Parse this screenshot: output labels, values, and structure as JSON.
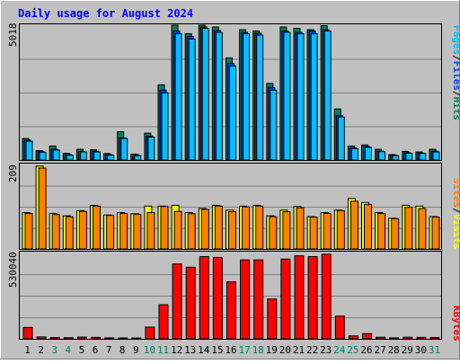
{
  "title": "Daily usage for August 2024",
  "colors": {
    "background": "#c0c0c0",
    "plot_background": "#c0c0c0",
    "title_text": "#0000ff",
    "hits": "#00805c",
    "files": "#0040ff",
    "pages": "#00c0ff",
    "visits": "#ffff00",
    "sites": "#ff8000",
    "kbytes": "#ff0000",
    "weekend_label": "#00805c",
    "weekday_label": "#000000"
  },
  "panels": {
    "top": {
      "max_label": "5018",
      "legend": [
        {
          "text": "Pages",
          "color": "#00c0ff"
        },
        {
          "text": "/",
          "color": "#000000"
        },
        {
          "text": "Files",
          "color": "#0040ff"
        },
        {
          "text": "/",
          "color": "#000000"
        },
        {
          "text": "Hits",
          "color": "#00805c"
        }
      ]
    },
    "middle": {
      "max_label": "209",
      "legend": [
        {
          "text": "Sites",
          "color": "#ff8000"
        },
        {
          "text": "/",
          "color": "#000000"
        },
        {
          "text": "Visits",
          "color": "#ffff00"
        }
      ]
    },
    "bottom": {
      "max_label": "530040",
      "legend": [
        {
          "text": "KBytes",
          "color": "#ff0000"
        }
      ]
    }
  },
  "chart_data": {
    "type": "bar",
    "title": "Daily usage for August 2024",
    "categories": [
      "1",
      "2",
      "3",
      "4",
      "5",
      "6",
      "7",
      "8",
      "9",
      "10",
      "11",
      "12",
      "13",
      "14",
      "15",
      "16",
      "17",
      "18",
      "19",
      "20",
      "21",
      "22",
      "23",
      "24",
      "25",
      "26",
      "27",
      "28",
      "29",
      "30",
      "31"
    ],
    "weekend_days": [
      "3",
      "4",
      "10",
      "11",
      "17",
      "18",
      "24",
      "25",
      "31"
    ],
    "series": [
      {
        "name": "Hits",
        "panel": "top",
        "values": [
          800,
          350,
          520,
          250,
          400,
          380,
          240,
          1050,
          220,
          1000,
          2800,
          5018,
          4700,
          5018,
          4950,
          3800,
          4850,
          4800,
          2850,
          4950,
          4900,
          4850,
          5000,
          1900,
          520,
          560,
          400,
          200,
          320,
          300,
          400
        ]
      },
      {
        "name": "Files",
        "panel": "top",
        "values": [
          740,
          310,
          400,
          200,
          320,
          330,
          200,
          820,
          190,
          890,
          2600,
          4800,
          4600,
          4950,
          4820,
          3600,
          4750,
          4720,
          2700,
          4800,
          4750,
          4800,
          4850,
          1650,
          450,
          500,
          330,
          180,
          270,
          260,
          330
        ]
      },
      {
        "name": "Pages",
        "panel": "top",
        "values": [
          700,
          290,
          370,
          180,
          300,
          300,
          180,
          800,
          160,
          850,
          2500,
          4700,
          4500,
          4900,
          4750,
          3500,
          4700,
          4650,
          2600,
          4750,
          4700,
          4700,
          4800,
          1600,
          420,
          470,
          310,
          160,
          250,
          240,
          300
        ]
      },
      {
        "name": "Visits",
        "panel": "middle",
        "values": [
          90,
          205,
          88,
          82,
          95,
          108,
          84,
          90,
          87,
          106,
          106,
          108,
          90,
          100,
          108,
          96,
          106,
          108,
          82,
          96,
          105,
          80,
          90,
          96,
          125,
          115,
          90,
          76,
          108,
          106,
          80
        ]
      },
      {
        "name": "Sites",
        "panel": "middle",
        "values": [
          88,
          200,
          85,
          80,
          93,
          106,
          83,
          88,
          86,
          90,
          105,
          93,
          87,
          98,
          106,
          92,
          104,
          106,
          80,
          92,
          102,
          79,
          88,
          95,
          118,
          110,
          88,
          75,
          103,
          100,
          79
        ]
      },
      {
        "name": "KBytes",
        "panel": "bottom",
        "values": [
          70000,
          12000,
          8000,
          7000,
          11000,
          9000,
          6000,
          5000,
          5000,
          72000,
          210000,
          460000,
          440000,
          505000,
          500000,
          350000,
          485000,
          485000,
          245000,
          490000,
          510000,
          505000,
          520000,
          140000,
          18000,
          32000,
          10000,
          6000,
          10000,
          9000,
          8000
        ]
      }
    ],
    "ylim": {
      "top": [
        0,
        5018
      ],
      "middle": [
        0,
        209
      ],
      "bottom": [
        0,
        530040
      ]
    }
  }
}
